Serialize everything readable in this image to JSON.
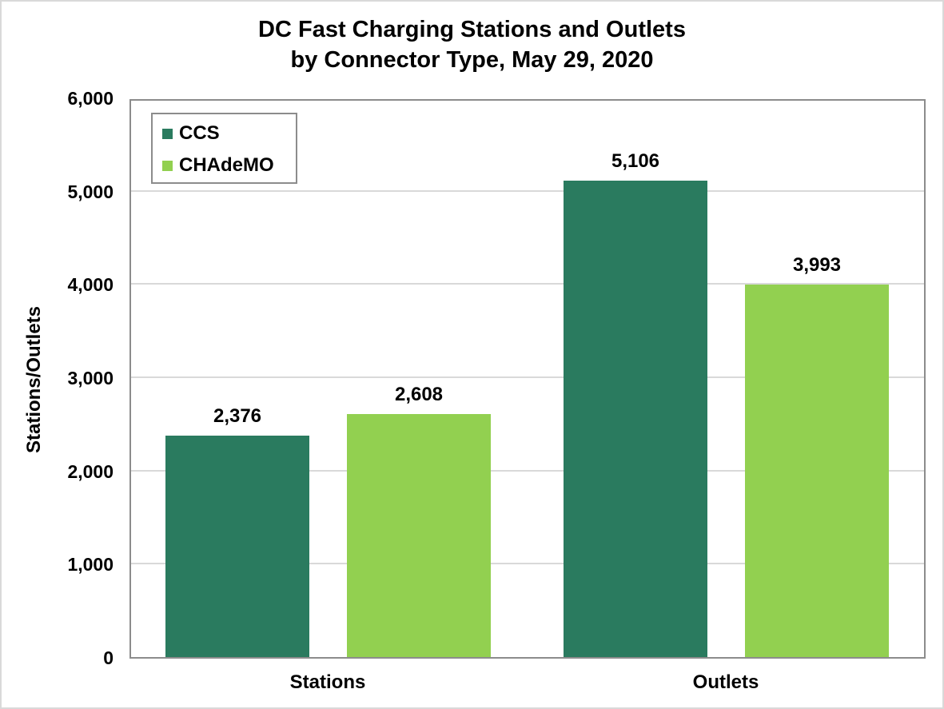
{
  "chart_data": {
    "type": "bar",
    "title": "DC Fast Charging Stations and Outlets by Connector Type, May 29, 2020",
    "title_lines": [
      "DC Fast Charging Stations and Outlets",
      "by Connector Type, May 29, 2020"
    ],
    "categories": [
      "Stations",
      "Outlets"
    ],
    "series": [
      {
        "name": "CCS",
        "color": "#2A7B5F",
        "values": [
          2376,
          5106
        ],
        "labels": [
          "2,376",
          "5,106"
        ]
      },
      {
        "name": "CHAdeMO",
        "color": "#92D050",
        "values": [
          2608,
          3993
        ],
        "labels": [
          "2,608",
          "3,993"
        ]
      }
    ],
    "xlabel": "",
    "ylabel": "Stations/Outlets",
    "ylim": [
      0,
      6000
    ],
    "yticks": [
      "0",
      "1,000",
      "2,000",
      "3,000",
      "4,000",
      "5,000",
      "6,000"
    ],
    "grid": true,
    "legend_position": "top-left inside"
  }
}
